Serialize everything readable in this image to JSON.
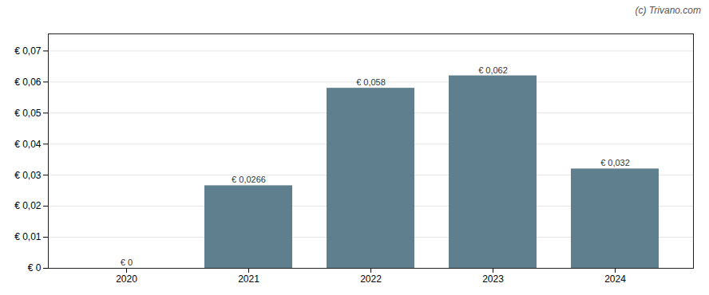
{
  "chart_data": {
    "type": "bar",
    "categories": [
      "2020",
      "2021",
      "2022",
      "2023",
      "2024"
    ],
    "values": [
      0.0,
      0.0266,
      0.058,
      0.062,
      0.032
    ],
    "value_labels": [
      "€ 0",
      "€ 0,0266",
      "€ 0,058",
      "€ 0,062",
      "€ 0,032"
    ],
    "data_labels": true,
    "color": "#5f7f8e",
    "ylim": [
      0,
      0.0755
    ],
    "yticks": [
      {
        "value": 0.0,
        "label": "€ 0"
      },
      {
        "value": 0.01,
        "label": "€ 0,01"
      },
      {
        "value": 0.02,
        "label": "€ 0,02"
      },
      {
        "value": 0.03,
        "label": "€ 0,03"
      },
      {
        "value": 0.04,
        "label": "€ 0,04"
      },
      {
        "value": 0.05,
        "label": "€ 0,05"
      },
      {
        "value": 0.06,
        "label": "€ 0,06"
      },
      {
        "value": 0.07,
        "label": "€ 0,07"
      }
    ],
    "grid": true,
    "annotations": [
      "(c) Trivano.com"
    ]
  }
}
